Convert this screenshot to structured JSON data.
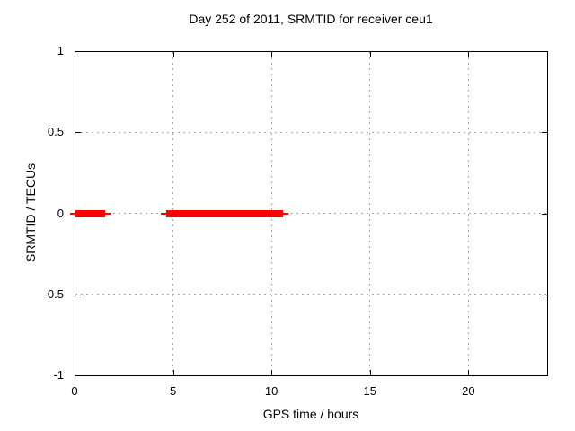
{
  "page": {
    "background": "#ffffff"
  },
  "chart_data": {
    "type": "line",
    "title": "Day 252 of 2011, SRMTID for receiver ceu1",
    "xlabel": "GPS time / hours",
    "ylabel": "SRMTID / TECUs",
    "xlim": [
      0,
      24
    ],
    "ylim": [
      -1,
      1
    ],
    "xticks": [
      0,
      5,
      10,
      15,
      20
    ],
    "xtick_labels": [
      "0",
      "5",
      "10",
      "15",
      "20"
    ],
    "yticks": [
      1,
      0.5,
      0,
      -0.5,
      -1
    ],
    "ytick_labels": [
      "1",
      "0.5",
      "0",
      "-0.5",
      "-1"
    ],
    "grid": true,
    "legend": "none",
    "marker": "plus",
    "series": [
      {
        "name": "SRMTID",
        "color": "#ff0000",
        "segments": [
          {
            "x_start": 0.05,
            "x_end": 1.55,
            "y": 0
          },
          {
            "x_start": 4.65,
            "x_end": 10.57,
            "y": 0
          }
        ]
      }
    ],
    "colors": {
      "series": "#ff0000",
      "grid": "#a8a8a8",
      "axis": "#000000",
      "text": "#000000",
      "background": "#ffffff"
    }
  }
}
